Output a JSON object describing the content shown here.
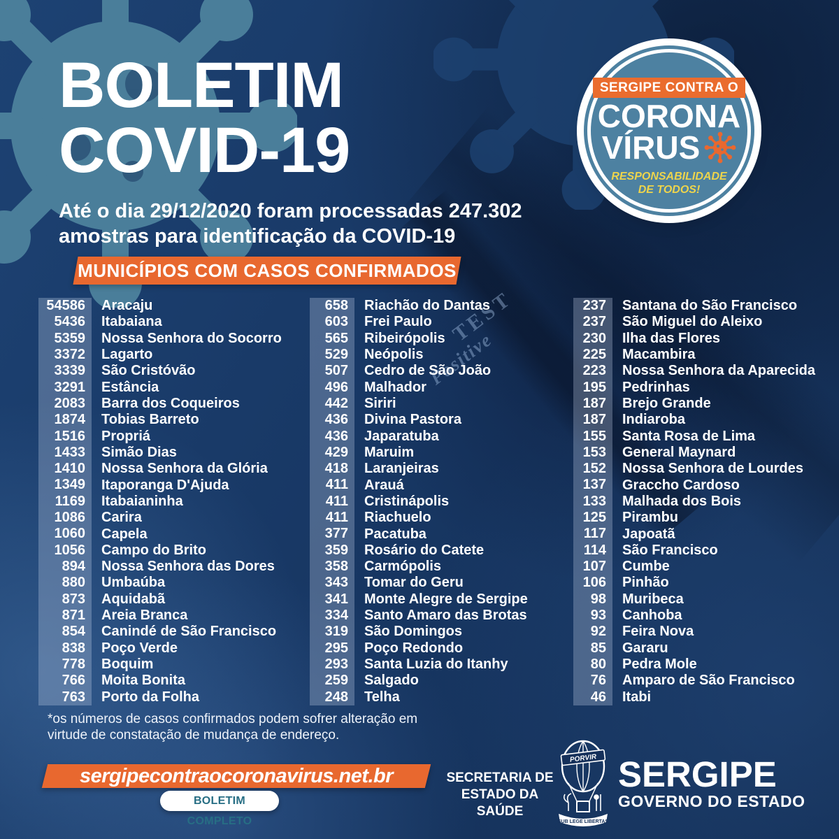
{
  "header": {
    "title_line1": "BOLETIM",
    "title_line2": "COVID-19",
    "subtitle_line1": "Até o dia 29/12/2020 foram processadas 247.302",
    "subtitle_line2": "amostras para identificação da COVID-19"
  },
  "badge": {
    "top_label": "SERGIPE CONTRA O",
    "title_line1": "CORONA",
    "title_line2": "VÍRUS",
    "tagline_line1": "RESPONSABILIDADE",
    "tagline_line2": "DE TODOS!"
  },
  "section_banner_label": "MUNICÍPIOS COM CASOS CONFIRMADOS",
  "table": {
    "columns": [
      {
        "rows": [
          {
            "cases": "54586",
            "name": "Aracaju"
          },
          {
            "cases": "5436",
            "name": "Itabaiana"
          },
          {
            "cases": "5359",
            "name": "Nossa Senhora do Socorro"
          },
          {
            "cases": "3372",
            "name": "Lagarto"
          },
          {
            "cases": "3339",
            "name": "São Cristóvão"
          },
          {
            "cases": "3291",
            "name": "Estância"
          },
          {
            "cases": "2083",
            "name": "Barra dos Coqueiros"
          },
          {
            "cases": "1874",
            "name": "Tobias Barreto"
          },
          {
            "cases": "1516",
            "name": "Propriá"
          },
          {
            "cases": "1433",
            "name": "Simão Dias"
          },
          {
            "cases": "1410",
            "name": "Nossa Senhora da Glória"
          },
          {
            "cases": "1349",
            "name": "Itaporanga D'Ajuda"
          },
          {
            "cases": "1169",
            "name": "Itabaianinha"
          },
          {
            "cases": "1086",
            "name": "Carira"
          },
          {
            "cases": "1060",
            "name": "Capela"
          },
          {
            "cases": "1056",
            "name": "Campo do Brito"
          },
          {
            "cases": "894",
            "name": "Nossa Senhora das Dores"
          },
          {
            "cases": "880",
            "name": "Umbaúba"
          },
          {
            "cases": "873",
            "name": "Aquidabã"
          },
          {
            "cases": "871",
            "name": "Areia Branca"
          },
          {
            "cases": "854",
            "name": "Canindé de São Francisco"
          },
          {
            "cases": "838",
            "name": "Poço Verde"
          },
          {
            "cases": "778",
            "name": "Boquim"
          },
          {
            "cases": "766",
            "name": "Moita Bonita"
          },
          {
            "cases": "763",
            "name": "Porto da Folha"
          }
        ]
      },
      {
        "rows": [
          {
            "cases": "658",
            "name": "Riachão do Dantas"
          },
          {
            "cases": "603",
            "name": "Frei Paulo"
          },
          {
            "cases": "565",
            "name": "Ribeirópolis"
          },
          {
            "cases": "529",
            "name": "Neópolis"
          },
          {
            "cases": "507",
            "name": "Cedro de São João"
          },
          {
            "cases": "496",
            "name": "Malhador"
          },
          {
            "cases": "442",
            "name": "Siriri"
          },
          {
            "cases": "436",
            "name": "Divina Pastora"
          },
          {
            "cases": "436",
            "name": "Japaratuba"
          },
          {
            "cases": "429",
            "name": "Maruim"
          },
          {
            "cases": "418",
            "name": "Laranjeiras"
          },
          {
            "cases": "411",
            "name": "Arauá"
          },
          {
            "cases": "411",
            "name": "Cristinápolis"
          },
          {
            "cases": "411",
            "name": "Riachuelo"
          },
          {
            "cases": "377",
            "name": "Pacatuba"
          },
          {
            "cases": "359",
            "name": "Rosário do Catete"
          },
          {
            "cases": "358",
            "name": "Carmópolis"
          },
          {
            "cases": "343",
            "name": "Tomar do Geru"
          },
          {
            "cases": "341",
            "name": "Monte Alegre de Sergipe"
          },
          {
            "cases": "334",
            "name": "Santo Amaro das Brotas"
          },
          {
            "cases": "319",
            "name": "São Domingos"
          },
          {
            "cases": "295",
            "name": "Poço Redondo"
          },
          {
            "cases": "293",
            "name": "Santa Luzia do Itanhy"
          },
          {
            "cases": "259",
            "name": "Salgado"
          },
          {
            "cases": "248",
            "name": "Telha"
          }
        ]
      },
      {
        "rows": [
          {
            "cases": "237",
            "name": "Santana do São Francisco"
          },
          {
            "cases": "237",
            "name": "São Miguel do Aleixo"
          },
          {
            "cases": "230",
            "name": "Ilha das Flores"
          },
          {
            "cases": "225",
            "name": "Macambira"
          },
          {
            "cases": "223",
            "name": "Nossa Senhora da Aparecida"
          },
          {
            "cases": "195",
            "name": "Pedrinhas"
          },
          {
            "cases": "187",
            "name": "Brejo Grande"
          },
          {
            "cases": "187",
            "name": "Indiaroba"
          },
          {
            "cases": "155",
            "name": "Santa Rosa de Lima"
          },
          {
            "cases": "153",
            "name": "General Maynard"
          },
          {
            "cases": "152",
            "name": "Nossa Senhora de Lourdes"
          },
          {
            "cases": "137",
            "name": "Graccho Cardoso"
          },
          {
            "cases": "133",
            "name": "Malhada dos Bois"
          },
          {
            "cases": "125",
            "name": "Pirambu"
          },
          {
            "cases": "117",
            "name": "Japoatã"
          },
          {
            "cases": "114",
            "name": "São Francisco"
          },
          {
            "cases": "107",
            "name": "Cumbe"
          },
          {
            "cases": "106",
            "name": "Pinhão"
          },
          {
            "cases": "98",
            "name": "Muribeca"
          },
          {
            "cases": "93",
            "name": "Canhoba"
          },
          {
            "cases": "92",
            "name": "Feira Nova"
          },
          {
            "cases": "85",
            "name": "Gararu"
          },
          {
            "cases": "80",
            "name": "Pedra Mole"
          },
          {
            "cases": "76",
            "name": "Amparo de São Francisco"
          },
          {
            "cases": "46",
            "name": "Itabi"
          }
        ]
      }
    ]
  },
  "footnote_line1": "*os números de casos confirmados podem sofrer alteração em",
  "footnote_line2": "virtude de constatação de mudança de endereço.",
  "footer": {
    "website": "sergipecontraocoronavirus.net.br",
    "bulletin_button": "BOLETIM COMPLETO",
    "secretaria_line1": "SECRETARIA DE",
    "secretaria_line2": "ESTADO DA SAÚDE",
    "gov_name": "SERGIPE",
    "gov_subtitle": "GOVERNO DO ESTADO",
    "emblem_band": "PORVIR",
    "emblem_ribbon": "SUB LEGE LIBERTAS"
  },
  "watermarks": [
    "TEST",
    "Positive"
  ],
  "colors": {
    "navy_bg": "#16335E",
    "teal_virus": "#4A7E9A",
    "badge_teal": "#4D81A1",
    "orange": "#E8682F",
    "yellow": "#EDD44C",
    "pill_text": "#276E84",
    "number_strip": "rgba(198,212,235,0.30)"
  }
}
